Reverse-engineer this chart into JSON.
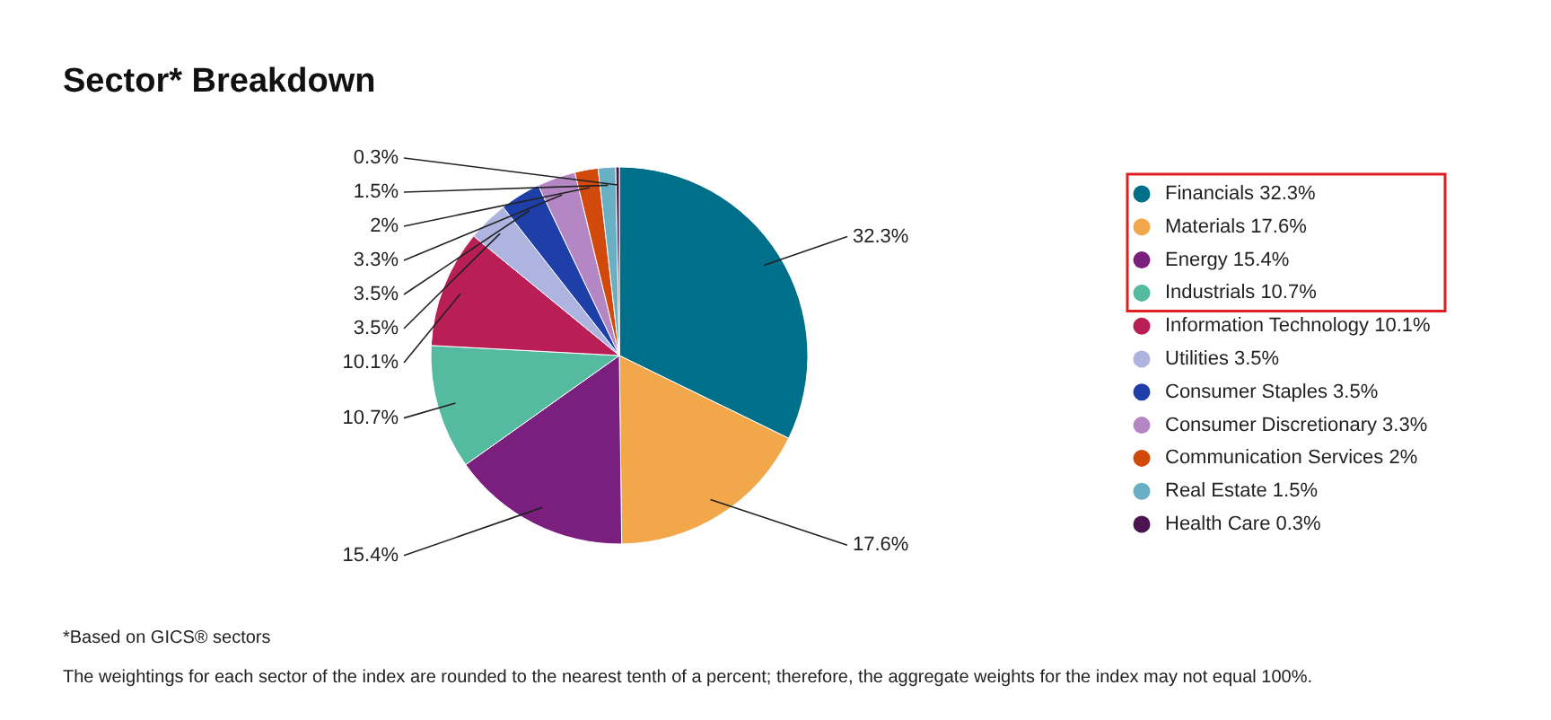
{
  "chart_data": {
    "type": "pie",
    "title": "Sector* Breakdown",
    "categories": [
      "Financials",
      "Materials",
      "Energy",
      "Industrials",
      "Information Technology",
      "Utilities",
      "Consumer Staples",
      "Consumer Discretionary",
      "Communication Services",
      "Real Estate",
      "Health Care"
    ],
    "values": [
      32.3,
      17.6,
      15.4,
      10.7,
      10.1,
      3.5,
      3.5,
      3.3,
      2,
      1.5,
      0.3
    ],
    "value_labels": [
      "32.3%",
      "17.6%",
      "15.4%",
      "10.7%",
      "10.1%",
      "3.5%",
      "3.5%",
      "3.3%",
      "2%",
      "1.5%",
      "0.3%"
    ],
    "colors": [
      "#006f8a",
      "#f2a74b",
      "#7b1f7e",
      "#55bba0",
      "#b91f55",
      "#aeb4e0",
      "#1f3fa8",
      "#b486c4",
      "#d14a0b",
      "#6ab0c4",
      "#4a1450"
    ],
    "legend": "right",
    "annotations": [
      "*Based on GICS® sectors",
      "The weightings for each sector of the index are rounded to the nearest tenth of a percent; therefore, the aggregate weights for the index may not equal 100%."
    ]
  }
}
